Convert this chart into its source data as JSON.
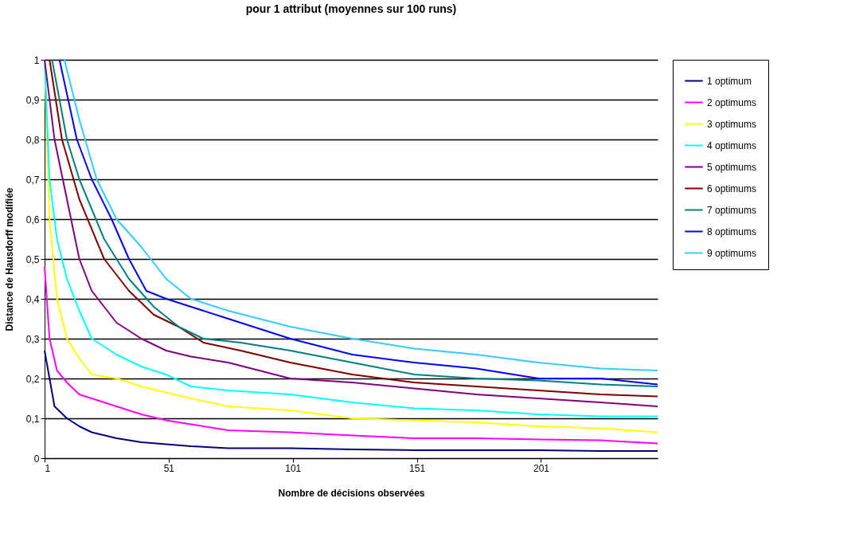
{
  "chart_data": {
    "type": "line",
    "title": "pour 1 attribut (moyennes sur 100 runs)",
    "xlabel": "Nombre de décisions observées",
    "ylabel": "Distance de Hausdorff modifiée",
    "xlim": [
      1,
      248
    ],
    "xticks": [
      1,
      51,
      101,
      151,
      201
    ],
    "ylim": [
      0,
      1
    ],
    "yticks": [
      0,
      {
        "value": 0.1,
        "label": "0,1"
      },
      {
        "value": 0.2,
        "label": "0,2"
      },
      {
        "value": 0.3,
        "label": "0,3"
      },
      {
        "value": 0.4,
        "label": "0,4"
      },
      {
        "value": 0.5,
        "label": "0,5"
      },
      {
        "value": 0.6,
        "label": "0,6"
      },
      {
        "value": 0.7,
        "label": "0,7"
      },
      {
        "value": 0.8,
        "label": "0,8"
      },
      {
        "value": 0.9,
        "label": "0,9"
      },
      1
    ],
    "grid": "y",
    "legend": "right",
    "marker": "none",
    "line_style": "solid",
    "series": [
      {
        "name": "1 optimum",
        "color": "#000080",
        "x": [
          1,
          5,
          10,
          15,
          20,
          30,
          40,
          50,
          60,
          75,
          100,
          125,
          150,
          175,
          200,
          225,
          248
        ],
        "values": [
          0.27,
          0.13,
          0.1,
          0.08,
          0.065,
          0.05,
          0.04,
          0.035,
          0.03,
          0.025,
          0.025,
          0.022,
          0.02,
          0.02,
          0.02,
          0.018,
          0.018
        ]
      },
      {
        "name": "2 optimums",
        "color": "#ff00ff",
        "x": [
          1,
          3,
          6,
          10,
          15,
          20,
          30,
          40,
          50,
          60,
          75,
          100,
          125,
          150,
          175,
          200,
          225,
          248
        ],
        "values": [
          0.48,
          0.3,
          0.22,
          0.19,
          0.16,
          0.15,
          0.13,
          0.11,
          0.095,
          0.085,
          0.07,
          0.065,
          0.057,
          0.05,
          0.05,
          0.047,
          0.045,
          0.037
        ]
      },
      {
        "name": "3 optimums",
        "color": "#ffff00",
        "x": [
          1,
          3,
          6,
          10,
          15,
          20,
          30,
          40,
          50,
          60,
          75,
          100,
          125,
          150,
          175,
          200,
          225,
          248
        ],
        "values": [
          1,
          0.6,
          0.4,
          0.3,
          0.25,
          0.21,
          0.2,
          0.18,
          0.165,
          0.15,
          0.13,
          0.12,
          0.1,
          0.095,
          0.09,
          0.08,
          0.075,
          0.065
        ]
      },
      {
        "name": "4 optimums",
        "color": "#00ffff",
        "x": [
          1,
          3,
          6,
          10,
          15,
          20,
          30,
          40,
          50,
          60,
          75,
          100,
          125,
          150,
          175,
          200,
          225,
          248
        ],
        "values": [
          1,
          0.7,
          0.55,
          0.45,
          0.37,
          0.3,
          0.26,
          0.23,
          0.21,
          0.18,
          0.17,
          0.16,
          0.14,
          0.125,
          0.12,
          0.11,
          0.105,
          0.105
        ]
      },
      {
        "name": "5 optimums",
        "color": "#800080",
        "x": [
          1,
          5,
          10,
          15,
          20,
          30,
          40,
          50,
          60,
          75,
          100,
          125,
          150,
          175,
          200,
          225,
          248
        ],
        "values": [
          1,
          0.8,
          0.65,
          0.5,
          0.42,
          0.34,
          0.3,
          0.27,
          0.255,
          0.24,
          0.2,
          0.19,
          0.175,
          0.16,
          0.15,
          0.14,
          0.13
        ]
      },
      {
        "name": "6 optimums",
        "color": "#800000",
        "x": [
          3,
          8,
          15,
          25,
          35,
          45,
          55,
          65,
          80,
          100,
          125,
          150,
          175,
          200,
          225,
          248
        ],
        "values": [
          1,
          0.8,
          0.65,
          0.5,
          0.42,
          0.36,
          0.33,
          0.29,
          0.27,
          0.24,
          0.21,
          0.19,
          0.18,
          0.17,
          0.16,
          0.155
        ]
      },
      {
        "name": "7 optimums",
        "color": "#008080",
        "x": [
          4,
          10,
          15,
          25,
          35,
          45,
          55,
          65,
          80,
          100,
          125,
          150,
          175,
          200,
          225,
          248
        ],
        "values": [
          1,
          0.8,
          0.7,
          0.55,
          0.45,
          0.38,
          0.33,
          0.3,
          0.29,
          0.27,
          0.24,
          0.21,
          0.2,
          0.195,
          0.185,
          0.18
        ]
      },
      {
        "name": "8 optimums",
        "color": "#0000ff",
        "x": [
          7,
          14,
          20,
          28,
          35,
          42,
          50,
          60,
          75,
          100,
          125,
          150,
          175,
          200,
          225,
          248
        ],
        "values": [
          1,
          0.8,
          0.7,
          0.6,
          0.5,
          0.42,
          0.4,
          0.38,
          0.35,
          0.3,
          0.26,
          0.24,
          0.225,
          0.2,
          0.2,
          0.185
        ]
      },
      {
        "name": "9 optimums",
        "color": "#33ccff",
        "x": [
          9,
          15,
          22,
          30,
          40,
          50,
          60,
          75,
          100,
          125,
          150,
          175,
          200,
          225,
          248
        ],
        "values": [
          1,
          0.85,
          0.7,
          0.6,
          0.53,
          0.45,
          0.4,
          0.37,
          0.33,
          0.3,
          0.275,
          0.26,
          0.24,
          0.225,
          0.22
        ]
      }
    ]
  }
}
